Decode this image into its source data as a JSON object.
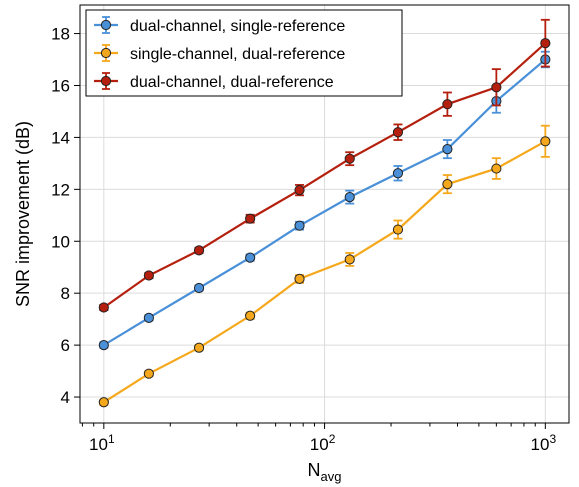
{
  "chart_data": {
    "type": "line",
    "title": "",
    "xlabel_main": "N",
    "xlabel_sub": "avg",
    "ylabel": "SNR improvement (dB)",
    "xscale": "log",
    "xlim": [
      7.8,
      1280
    ],
    "ylim": [
      3.0,
      19.1
    ],
    "x_ticks": [
      {
        "value": 10,
        "base": "10",
        "exp": "1"
      },
      {
        "value": 100,
        "base": "10",
        "exp": "2"
      },
      {
        "value": 1000,
        "base": "10",
        "exp": "3"
      }
    ],
    "y_ticks": [
      4,
      6,
      8,
      10,
      12,
      14,
      16,
      18
    ],
    "grid": true,
    "legend_position": "top-left",
    "x": [
      10,
      16,
      27,
      46,
      77,
      130,
      215,
      360,
      600,
      1000
    ],
    "series": [
      {
        "name": "dual-channel, single-reference",
        "color": "#4a90d9",
        "values": [
          6.0,
          7.05,
          8.2,
          9.37,
          10.6,
          11.7,
          12.62,
          13.55,
          15.4,
          17.0
        ],
        "errors": [
          0.1,
          0.1,
          0.1,
          0.12,
          0.15,
          0.25,
          0.28,
          0.35,
          0.45,
          0.3
        ]
      },
      {
        "name": "single-channel, dual-reference",
        "color": "#f5a81c",
        "values": [
          3.8,
          4.9,
          5.9,
          7.13,
          8.55,
          9.3,
          10.45,
          12.2,
          12.8,
          13.85
        ],
        "errors": [
          0.1,
          0.1,
          0.1,
          0.12,
          0.15,
          0.25,
          0.35,
          0.35,
          0.4,
          0.6
        ]
      },
      {
        "name": "dual-channel, dual-reference",
        "color": "#b51f0e",
        "values": [
          7.45,
          8.68,
          9.65,
          10.87,
          11.97,
          13.18,
          14.2,
          15.28,
          15.93,
          17.63
        ],
        "errors": [
          0.1,
          0.1,
          0.1,
          0.15,
          0.2,
          0.25,
          0.3,
          0.45,
          0.7,
          0.9
        ]
      }
    ]
  }
}
